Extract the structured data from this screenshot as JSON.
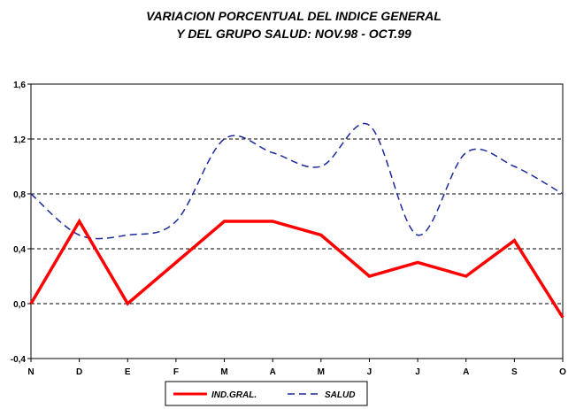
{
  "chart_data": {
    "type": "line",
    "title": "VARIACION PORCENTUAL DEL INDICE GENERAL",
    "subtitle": "Y DEL GRUPO SALUD: NOV.98 - OCT.99",
    "xlabel": "",
    "ylabel": "",
    "categories": [
      "N",
      "D",
      "E",
      "F",
      "M",
      "A",
      "M",
      "J",
      "J",
      "A",
      "S",
      "O"
    ],
    "ylim": [
      -0.4,
      1.6
    ],
    "yticks": [
      -0.4,
      0.0,
      0.4,
      0.8,
      1.2,
      1.6
    ],
    "ytick_labels": [
      "-0,4",
      "0,0",
      "0,4",
      "0,8",
      "1,2",
      "1,6"
    ],
    "grid": "horizontal dashed",
    "legend_position": "bottom-center",
    "series": [
      {
        "name": "IND.GRAL.",
        "color": "#ff0000",
        "style": "solid",
        "smooth": false,
        "values": [
          0.0,
          0.6,
          0.0,
          0.3,
          0.6,
          0.6,
          0.5,
          0.2,
          0.3,
          0.2,
          0.46,
          -0.1
        ]
      },
      {
        "name": "SALUD",
        "color": "#1a2a9c",
        "style": "dashed",
        "smooth": true,
        "values": [
          0.8,
          0.5,
          0.5,
          0.6,
          1.2,
          1.1,
          1.0,
          1.3,
          0.5,
          1.1,
          1.0,
          0.8
        ]
      }
    ]
  }
}
